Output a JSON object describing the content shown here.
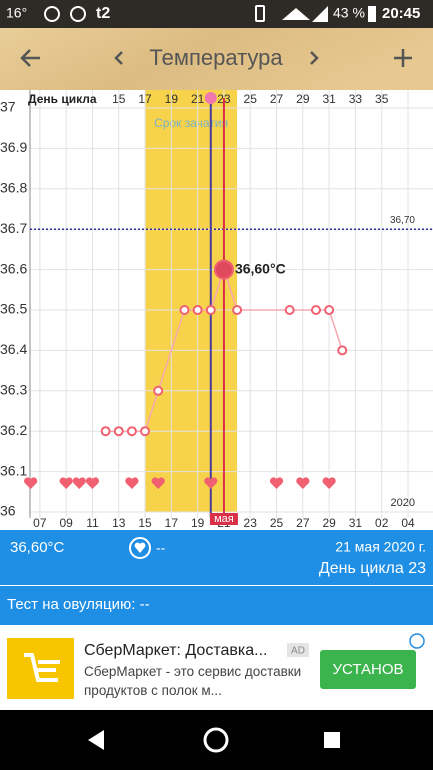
{
  "status_bar": {
    "temperature": "16°",
    "carrier": "t2",
    "battery": "43 %",
    "time": "20:45"
  },
  "toolbar": {
    "title": "Температура"
  },
  "chart_data": {
    "type": "line",
    "x_title": "День цикла",
    "x": [
      12,
      13,
      14,
      15,
      16,
      18,
      19,
      20,
      21,
      22,
      26,
      28,
      29,
      30
    ],
    "series": [
      {
        "color": "#f06070",
        "values": [
          36.2,
          36.2,
          36.2,
          36.2,
          36.3,
          36.5,
          36.5,
          36.5,
          36.6,
          36.5,
          36.5,
          36.5,
          36.5,
          36.4
        ],
        "value_labels": [
          null,
          null,
          null,
          null,
          null,
          null,
          null,
          null,
          "36,60°C",
          null,
          null,
          null,
          null,
          null
        ]
      }
    ],
    "xlim": [
      6.25,
      36.9
    ],
    "ylim": [
      36,
      37
    ],
    "yticks": [
      36,
      36.1,
      36.2,
      36.3,
      36.4,
      36.5,
      36.6,
      36.7,
      36.8,
      36.9,
      37
    ],
    "xticks": [
      {
        "value": 7,
        "label": "07"
      },
      {
        "value": 9,
        "label": "09"
      },
      11,
      13,
      15,
      17,
      19,
      21,
      23,
      25,
      27,
      29,
      31,
      {
        "value": 33,
        "label": "02"
      },
      {
        "value": 35,
        "label": "04"
      }
    ],
    "x2ticks": [
      {
        "value": 13,
        "label": "15"
      },
      {
        "value": 15,
        "label": "17"
      },
      {
        "value": 17,
        "label": "19"
      },
      {
        "value": 19,
        "label": "21"
      },
      {
        "value": 21,
        "label": "23"
      },
      {
        "value": 23,
        "label": "25"
      },
      {
        "value": 25,
        "label": "27"
      },
      {
        "value": 27,
        "label": "29"
      },
      {
        "value": 29,
        "label": "31"
      },
      {
        "value": 31,
        "label": "33"
      },
      {
        "value": 33,
        "label": "35"
      }
    ],
    "fertile_window": {
      "label": "Срок зачатия",
      "start": 15,
      "end": 22,
      "color": "#f7d34c"
    },
    "vlines": [
      {
        "x": 20,
        "color": "#4a3c9c"
      },
      {
        "x": 21,
        "color": "#d93048"
      }
    ],
    "threshold": {
      "value": 36.7,
      "label": "36,70",
      "color": "#2c2c9c"
    },
    "heart_days": [
      6.3,
      9,
      10,
      11,
      14,
      16,
      20,
      25,
      27,
      29
    ],
    "month_label": "мая",
    "year_label": "2020",
    "grid": true
  },
  "info": {
    "temperature": "36,60°C",
    "mark": "--",
    "date": "21 мая 2020 г.",
    "cycle_day": "День цикла 23",
    "ovulation_test": "Тест на овуляцию: --"
  },
  "ad": {
    "title": "СберМаркет: Доставка...",
    "badge": "AD",
    "text": "СберМаркет - это сервис доставки продуктов с полок м...",
    "button": "УСТАНОВ"
  }
}
